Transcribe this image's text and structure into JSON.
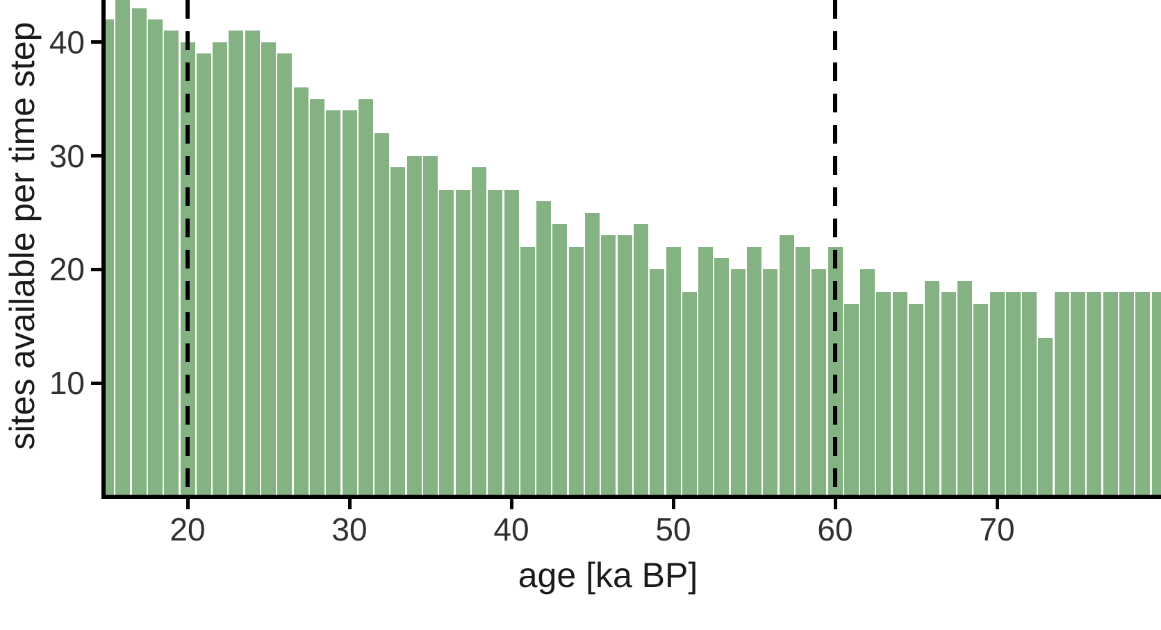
{
  "chart_data": {
    "type": "bar",
    "title": "",
    "xlabel": "age [ka BP]",
    "ylabel": "sites available per time step",
    "x_ticks": [
      20,
      30,
      40,
      50,
      60,
      70
    ],
    "y_ticks": [
      10,
      20,
      30,
      40
    ],
    "xlim": [
      14.5,
      80
    ],
    "ylim": [
      0,
      43.7
    ],
    "bar_color": "#84b282",
    "axis_color": "#000000",
    "text_color": "#303030",
    "reference_lines_x": [
      20,
      60
    ],
    "grid": false,
    "legend": false,
    "x": [
      15,
      16,
      17,
      18,
      19,
      20,
      21,
      22,
      23,
      24,
      25,
      26,
      27,
      28,
      29,
      30,
      31,
      32,
      33,
      34,
      35,
      36,
      37,
      38,
      39,
      40,
      41,
      42,
      43,
      44,
      45,
      46,
      47,
      48,
      49,
      50,
      51,
      52,
      53,
      54,
      55,
      56,
      57,
      58,
      59,
      60,
      61,
      62,
      63,
      64,
      65,
      66,
      67,
      68,
      69,
      70,
      71,
      72,
      73,
      74,
      75,
      76,
      77,
      78,
      79,
      80
    ],
    "values": [
      42,
      44,
      43,
      42,
      41,
      40,
      39,
      40,
      41,
      41,
      40,
      39,
      36,
      35,
      34,
      34,
      35,
      32,
      29,
      30,
      30,
      27,
      27,
      29,
      27,
      27,
      22,
      26,
      24,
      22,
      25,
      23,
      23,
      24,
      20,
      22,
      18,
      22,
      21,
      20,
      22,
      20,
      23,
      22,
      20,
      22,
      17,
      20,
      18,
      18,
      17,
      19,
      18,
      19,
      17,
      18,
      18,
      18,
      14,
      18,
      18,
      18,
      18,
      18,
      18,
      18
    ]
  }
}
